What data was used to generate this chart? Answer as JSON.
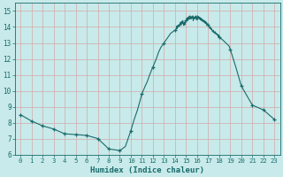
{
  "xlabel": "Humidex (Indice chaleur)",
  "xlim": [
    -0.5,
    23.5
  ],
  "ylim": [
    6,
    15.5
  ],
  "yticks": [
    6,
    7,
    8,
    9,
    10,
    11,
    12,
    13,
    14,
    15
  ],
  "xticks": [
    0,
    1,
    2,
    3,
    4,
    5,
    6,
    7,
    8,
    9,
    10,
    11,
    12,
    13,
    14,
    15,
    16,
    17,
    18,
    19,
    20,
    21,
    22,
    23
  ],
  "background_color": "#c8eaea",
  "grid_color": "#b0d8d8",
  "line_color": "#1a6b6b",
  "data_x": [
    0,
    1,
    2,
    3,
    4,
    5,
    6,
    7,
    8,
    9,
    9.5,
    10.0,
    10.3,
    10.6,
    11.0,
    11.3,
    11.5,
    11.7,
    12.0,
    12.3,
    12.5,
    12.7,
    13.0,
    13.2,
    13.4,
    13.5,
    13.6,
    13.7,
    13.8,
    13.9,
    14.0,
    14.1,
    14.15,
    14.2,
    14.25,
    14.3,
    14.35,
    14.4,
    14.45,
    14.5,
    14.55,
    14.6,
    14.65,
    14.7,
    14.75,
    14.8,
    14.85,
    14.9,
    14.95,
    15.0,
    15.05,
    15.1,
    15.15,
    15.2,
    15.25,
    15.3,
    15.35,
    15.4,
    15.45,
    15.5,
    15.55,
    15.6,
    15.65,
    15.7,
    15.75,
    15.8,
    15.85,
    15.9,
    15.95,
    16.0,
    16.05,
    16.1,
    16.15,
    16.2,
    16.25,
    16.3,
    16.35,
    16.4,
    16.45,
    16.5,
    16.55,
    16.6,
    16.65,
    16.7,
    16.75,
    16.8,
    16.85,
    16.9,
    16.95,
    17.0,
    17.05,
    17.1,
    17.15,
    17.2,
    17.25,
    17.3,
    17.35,
    17.4,
    17.45,
    17.5,
    17.55,
    17.6,
    17.65,
    17.7,
    17.75,
    17.8,
    17.85,
    17.9,
    17.95,
    18.0,
    18.3,
    18.6,
    18.9,
    19.0,
    19.5,
    20.0,
    21.0,
    22.0,
    23.0
  ],
  "data_y": [
    8.5,
    8.1,
    7.8,
    7.6,
    7.3,
    7.25,
    7.2,
    7.0,
    6.35,
    6.25,
    6.5,
    7.5,
    8.2,
    8.8,
    9.8,
    10.3,
    10.6,
    11.0,
    11.5,
    12.0,
    12.4,
    12.7,
    13.0,
    13.2,
    13.4,
    13.5,
    13.6,
    13.65,
    13.7,
    13.75,
    13.8,
    13.85,
    14.05,
    13.9,
    14.1,
    14.0,
    14.15,
    14.05,
    14.2,
    14.3,
    14.1,
    14.35,
    14.2,
    14.4,
    14.25,
    14.1,
    14.3,
    14.15,
    14.35,
    14.4,
    14.55,
    14.4,
    14.6,
    14.45,
    14.65,
    14.5,
    14.7,
    14.6,
    14.5,
    14.65,
    14.55,
    14.7,
    14.4,
    14.6,
    14.5,
    14.65,
    14.55,
    14.7,
    14.45,
    14.6,
    14.7,
    14.55,
    14.65,
    14.5,
    14.6,
    14.45,
    14.55,
    14.4,
    14.5,
    14.35,
    14.45,
    14.3,
    14.4,
    14.25,
    14.35,
    14.2,
    14.3,
    14.1,
    14.2,
    14.15,
    14.1,
    14.0,
    13.9,
    14.0,
    13.85,
    13.9,
    13.8,
    13.7,
    13.8,
    13.65,
    13.7,
    13.6,
    13.7,
    13.55,
    13.6,
    13.5,
    13.55,
    13.4,
    13.5,
    13.35,
    13.2,
    13.0,
    12.8,
    12.6,
    11.5,
    10.3,
    9.1,
    8.8,
    8.2
  ],
  "marker_x": [
    0,
    1,
    2,
    3,
    4,
    5,
    6,
    7,
    8,
    9,
    10,
    11,
    12,
    13,
    14,
    15,
    16,
    17,
    18,
    19,
    20,
    21,
    22,
    23
  ],
  "marker_y": [
    8.5,
    8.1,
    7.8,
    7.6,
    7.3,
    7.25,
    7.2,
    7.0,
    6.35,
    6.25,
    7.5,
    9.8,
    11.5,
    13.0,
    13.8,
    14.4,
    14.6,
    14.15,
    13.35,
    12.6,
    10.3,
    9.1,
    8.8,
    8.2
  ]
}
